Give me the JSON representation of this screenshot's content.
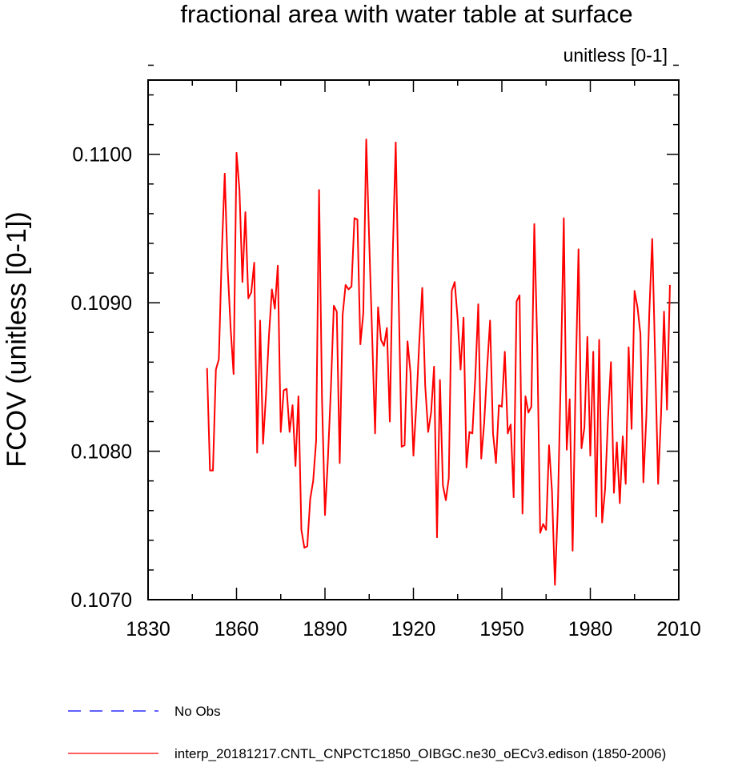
{
  "chart_data": {
    "type": "line",
    "title": "fractional area with water table at surface",
    "units_label": "unitless [0-1]",
    "ylabel": "FCOV  (unitless [0-1])",
    "xlabel": "",
    "xlim": [
      1830,
      2010
    ],
    "ylim": [
      0.107,
      0.1105
    ],
    "x_ticks": [
      1830,
      1860,
      1890,
      1920,
      1950,
      1980,
      2010
    ],
    "y_ticks": [
      0.107,
      0.108,
      0.109,
      0.11
    ],
    "y_tick_labels": [
      "0.1070",
      "0.1080",
      "0.1090",
      "0.1100"
    ],
    "x_start": 1850,
    "legend": [
      {
        "label": "No Obs",
        "color": "#0000ff",
        "style": "dashed"
      },
      {
        "label": "interp_20181217.CNTL_CNPCTC1850_OIBGC.ne30_oECv3.edison (1850-2006)",
        "color": "#ff0000",
        "style": "solid"
      }
    ],
    "series": [
      {
        "name": "interp_20181217.CNTL_CNPCTC1850_OIBGC.ne30_oECv3.edison (1850-2006)",
        "color": "#ff0000",
        "values": [
          0.10856,
          0.10787,
          0.10787,
          0.10855,
          0.10862,
          0.10933,
          0.10987,
          0.10923,
          0.10883,
          0.10852,
          0.11001,
          0.10976,
          0.10914,
          0.10961,
          0.10903,
          0.10907,
          0.10927,
          0.10799,
          0.10888,
          0.10805,
          0.10838,
          0.10878,
          0.10909,
          0.10896,
          0.10925,
          0.10813,
          0.10841,
          0.10842,
          0.10813,
          0.10831,
          0.1079,
          0.10837,
          0.10747,
          0.10735,
          0.10736,
          0.10768,
          0.1078,
          0.10807,
          0.10976,
          0.10835,
          0.10757,
          0.10795,
          0.10842,
          0.10898,
          0.10894,
          0.10792,
          0.10892,
          0.10912,
          0.10909,
          0.10911,
          0.10957,
          0.10956,
          0.10872,
          0.10893,
          0.1101,
          0.10942,
          0.10878,
          0.10812,
          0.10897,
          0.10875,
          0.10871,
          0.10883,
          0.1082,
          0.10933,
          0.11008,
          0.10903,
          0.10803,
          0.10804,
          0.10874,
          0.10853,
          0.10797,
          0.10832,
          0.10874,
          0.1091,
          0.10844,
          0.10813,
          0.10826,
          0.10857,
          0.10742,
          0.10848,
          0.10777,
          0.10767,
          0.10782,
          0.10908,
          0.10914,
          0.10889,
          0.10855,
          0.1089,
          0.10789,
          0.10813,
          0.10812,
          0.1085,
          0.10899,
          0.10795,
          0.10819,
          0.10856,
          0.10888,
          0.10812,
          0.10792,
          0.10831,
          0.1083,
          0.10867,
          0.10812,
          0.10818,
          0.10769,
          0.10901,
          0.10905,
          0.10758,
          0.10837,
          0.10826,
          0.1083,
          0.10953,
          0.10872,
          0.10745,
          0.10751,
          0.10747,
          0.10804,
          0.10773,
          0.1071,
          0.10763,
          0.10852,
          0.10957,
          0.10801,
          0.10835,
          0.10733,
          0.10846,
          0.10936,
          0.10802,
          0.10816,
          0.10877,
          0.10797,
          0.10867,
          0.10756,
          0.10875,
          0.10752,
          0.10774,
          0.10822,
          0.1086,
          0.10772,
          0.10806,
          0.10765,
          0.1081,
          0.10778,
          0.1087,
          0.10815,
          0.10908,
          0.10897,
          0.10879,
          0.10779,
          0.10823,
          0.10893,
          0.10943,
          0.10861,
          0.10778,
          0.10825,
          0.10894,
          0.10828,
          0.10912
        ]
      }
    ]
  }
}
